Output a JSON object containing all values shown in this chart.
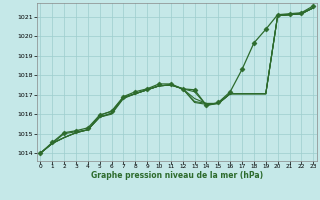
{
  "xlabel": "Graphe pression niveau de la mer (hPa)",
  "ylim": [
    1013.6,
    1021.7
  ],
  "xlim": [
    -0.3,
    23.3
  ],
  "yticks": [
    1014,
    1015,
    1016,
    1017,
    1018,
    1019,
    1020,
    1021
  ],
  "xticks": [
    0,
    1,
    2,
    3,
    4,
    5,
    6,
    7,
    8,
    9,
    10,
    11,
    12,
    13,
    14,
    15,
    16,
    17,
    18,
    19,
    20,
    21,
    22,
    23
  ],
  "bg_color": "#c5e8e8",
  "grid_color": "#9ecece",
  "line_color": "#2d6b2d",
  "series_no_marker": [
    [
      1014.0,
      1014.5,
      1014.8,
      1015.05,
      1015.2,
      1015.85,
      1016.05,
      1016.85,
      1017.05,
      1017.25,
      1017.45,
      1017.5,
      1017.3,
      1017.15,
      1016.45,
      1016.55,
      1017.05,
      1017.05,
      1017.05,
      1017.05,
      1021.05,
      1021.1,
      1021.15,
      1021.45
    ],
    [
      1014.0,
      1014.5,
      1014.8,
      1015.05,
      1015.2,
      1015.85,
      1016.05,
      1016.85,
      1017.05,
      1017.25,
      1017.45,
      1017.5,
      1017.3,
      1016.8,
      1016.55,
      1016.55,
      1017.05,
      1017.05,
      1017.05,
      1017.05,
      1021.05,
      1021.1,
      1021.15,
      1021.45
    ],
    [
      1014.0,
      1014.5,
      1014.8,
      1015.05,
      1015.2,
      1015.85,
      1016.0,
      1016.8,
      1017.05,
      1017.25,
      1017.45,
      1017.5,
      1017.3,
      1016.6,
      1016.5,
      1016.55,
      1017.05,
      1017.05,
      1017.05,
      1017.05,
      1021.05,
      1021.1,
      1021.15,
      1021.45
    ],
    [
      1014.0,
      1014.5,
      1015.0,
      1015.1,
      1015.2,
      1015.95,
      1016.15,
      1016.85,
      1017.05,
      1017.25,
      1017.45,
      1017.5,
      1017.3,
      1016.65,
      1016.55,
      1016.55,
      1017.05,
      1017.05,
      1017.05,
      1017.05,
      1021.05,
      1021.1,
      1021.15,
      1021.45
    ]
  ],
  "series_marker": [
    1014.0,
    1014.55,
    1015.05,
    1015.15,
    1015.3,
    1015.95,
    1016.15,
    1016.9,
    1017.15,
    1017.3,
    1017.55,
    1017.55,
    1017.3,
    1017.25,
    1016.45,
    1016.6,
    1017.15,
    1018.3,
    1019.65,
    1020.35,
    1021.1,
    1021.15,
    1021.2,
    1021.55
  ],
  "marker": "D",
  "marker_size": 2.5
}
